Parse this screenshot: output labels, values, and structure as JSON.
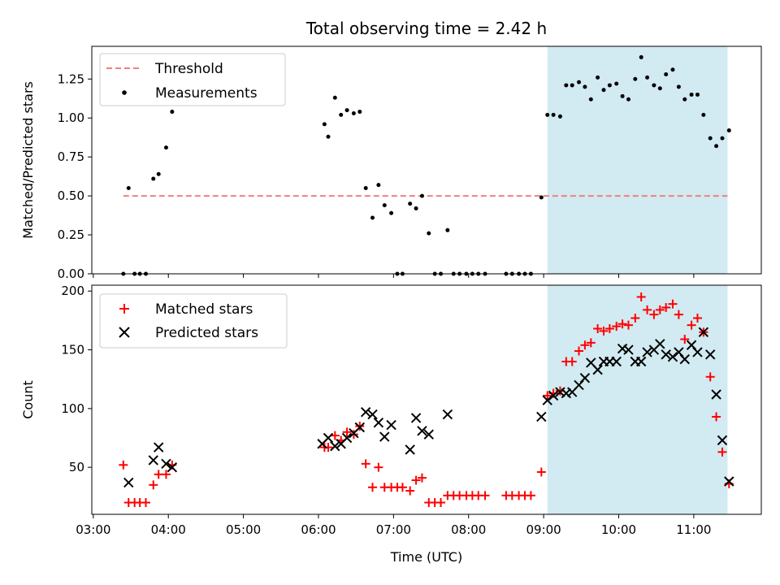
{
  "title": "Total observing time = 2.42 h",
  "xlabel": "Time (UTC)",
  "x_ticks": [
    "03:00",
    "04:00",
    "05:00",
    "06:00",
    "07:00",
    "08:00",
    "09:00",
    "10:00",
    "11:00"
  ],
  "highlight_color": "#add8e6",
  "chart_data": [
    {
      "type": "scatter",
      "ylabel": "Matched/Predicted stars",
      "xlim": [
        2.98,
        11.9
      ],
      "ylim": [
        0,
        1.46
      ],
      "y_ticks": [
        "0.00",
        "0.25",
        "0.50",
        "0.75",
        "1.00",
        "1.25"
      ],
      "highlight_span": [
        9.05,
        11.45
      ],
      "legend": {
        "position": "top-left",
        "entries": [
          "Threshold",
          "Measurements"
        ]
      },
      "series": [
        {
          "name": "Threshold",
          "kind": "line",
          "style": "dashed",
          "color": "#f08080",
          "x": [
            3.4,
            11.45
          ],
          "y": [
            0.5,
            0.5
          ]
        },
        {
          "name": "Measurements",
          "kind": "scatter",
          "color": "#000000",
          "x": [
            3.4,
            3.47,
            3.55,
            3.62,
            3.7,
            3.8,
            3.87,
            3.97,
            4.05,
            6.08,
            6.13,
            6.22,
            6.3,
            6.38,
            6.47,
            6.55,
            6.63,
            6.72,
            6.8,
            6.88,
            6.97,
            7.05,
            7.12,
            7.22,
            7.3,
            7.38,
            7.47,
            7.55,
            7.63,
            7.72,
            7.8,
            7.88,
            7.97,
            8.05,
            8.13,
            8.22,
            8.5,
            8.58,
            8.67,
            8.75,
            8.83,
            8.97,
            9.05,
            9.13,
            9.22,
            9.3,
            9.38,
            9.47,
            9.55,
            9.63,
            9.72,
            9.8,
            9.88,
            9.97,
            10.05,
            10.13,
            10.22,
            10.3,
            10.38,
            10.47,
            10.55,
            10.63,
            10.72,
            10.8,
            10.88,
            10.97,
            11.05,
            11.13,
            11.22,
            11.3,
            11.38,
            11.47
          ],
          "y": [
            0.0,
            0.55,
            0.0,
            0.0,
            0.0,
            0.61,
            0.64,
            0.81,
            1.04,
            0.96,
            0.88,
            1.13,
            1.02,
            1.05,
            1.03,
            1.04,
            0.55,
            0.36,
            0.57,
            0.44,
            0.39,
            0.0,
            0.0,
            0.45,
            0.42,
            0.5,
            0.26,
            0.0,
            0.0,
            0.28,
            0.0,
            0.0,
            0.0,
            0.0,
            0.0,
            0.0,
            0.0,
            0.0,
            0.0,
            0.0,
            0.0,
            0.49,
            1.02,
            1.02,
            1.01,
            1.21,
            1.21,
            1.23,
            1.2,
            1.12,
            1.26,
            1.18,
            1.21,
            1.22,
            1.14,
            1.12,
            1.25,
            1.39,
            1.26,
            1.21,
            1.19,
            1.28,
            1.31,
            1.2,
            1.12,
            1.15,
            1.15,
            1.02,
            0.87,
            0.82,
            0.87,
            0.92
          ]
        }
      ]
    },
    {
      "type": "scatter",
      "ylabel": "Count",
      "xlim": [
        2.98,
        11.9
      ],
      "ylim": [
        10,
        205
      ],
      "y_ticks": [
        "50",
        "100",
        "150",
        "200"
      ],
      "highlight_span": [
        9.05,
        11.45
      ],
      "legend": {
        "position": "top-left",
        "entries": [
          "Matched stars",
          "Predicted stars"
        ]
      },
      "series": [
        {
          "name": "Matched stars",
          "kind": "scatter",
          "marker": "plus",
          "color": "#ff0000",
          "x": [
            3.4,
            3.47,
            3.55,
            3.62,
            3.7,
            3.8,
            3.87,
            3.97,
            4.05,
            6.08,
            6.13,
            6.22,
            6.3,
            6.38,
            6.47,
            6.55,
            6.63,
            6.72,
            6.8,
            6.88,
            6.97,
            7.05,
            7.12,
            7.22,
            7.3,
            7.38,
            7.47,
            7.55,
            7.63,
            7.72,
            7.8,
            7.88,
            7.97,
            8.05,
            8.13,
            8.22,
            8.5,
            8.58,
            8.67,
            8.75,
            8.83,
            8.97,
            9.05,
            9.13,
            9.22,
            9.3,
            9.38,
            9.47,
            9.55,
            9.63,
            9.72,
            9.8,
            9.88,
            9.97,
            10.05,
            10.13,
            10.22,
            10.3,
            10.38,
            10.47,
            10.55,
            10.63,
            10.72,
            10.8,
            10.88,
            10.97,
            11.05,
            11.13,
            11.22,
            11.3,
            11.38,
            11.47
          ],
          "y": [
            52,
            20,
            20,
            20,
            20,
            35,
            44,
            44,
            52,
            67,
            67,
            77,
            73,
            80,
            78,
            85,
            53,
            33,
            50,
            33,
            33,
            33,
            33,
            30,
            39,
            41,
            20,
            20,
            20,
            26,
            26,
            26,
            26,
            26,
            26,
            26,
            26,
            26,
            26,
            26,
            26,
            46,
            111,
            113,
            115,
            140,
            140,
            149,
            154,
            156,
            168,
            166,
            168,
            170,
            172,
            171,
            177,
            195,
            184,
            180,
            184,
            186,
            189,
            180,
            159,
            171,
            177,
            165,
            127,
            93,
            63,
            36
          ]
        },
        {
          "name": "Predicted stars",
          "kind": "scatter",
          "marker": "x",
          "color": "#000000",
          "x": [
            3.47,
            3.8,
            3.87,
            3.97,
            4.05,
            6.05,
            6.13,
            6.22,
            6.3,
            6.38,
            6.47,
            6.55,
            6.63,
            6.72,
            6.8,
            6.88,
            6.97,
            7.22,
            7.3,
            7.38,
            7.47,
            7.72,
            8.97,
            9.05,
            9.13,
            9.22,
            9.3,
            9.38,
            9.47,
            9.55,
            9.63,
            9.72,
            9.8,
            9.88,
            9.97,
            10.05,
            10.13,
            10.22,
            10.3,
            10.38,
            10.47,
            10.55,
            10.63,
            10.72,
            10.8,
            10.88,
            10.97,
            11.05,
            11.13,
            11.22,
            11.3,
            11.38,
            11.47
          ],
          "y": [
            37,
            56,
            67,
            53,
            50,
            70,
            75,
            68,
            70,
            75,
            79,
            84,
            97,
            95,
            88,
            76,
            86,
            65,
            92,
            81,
            78,
            95,
            93,
            107,
            111,
            114,
            113,
            114,
            120,
            126,
            139,
            133,
            140,
            140,
            140,
            151,
            150,
            140,
            140,
            148,
            150,
            155,
            146,
            144,
            148,
            142,
            154,
            148,
            165,
            146,
            112,
            73,
            38
          ]
        }
      ]
    }
  ]
}
